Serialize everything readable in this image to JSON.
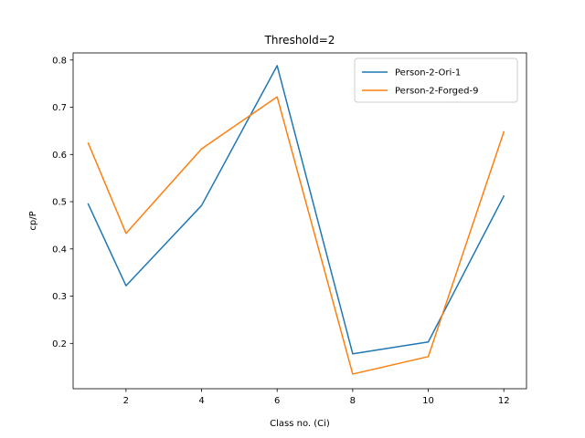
{
  "chart_data": {
    "type": "line",
    "title": "Threshold=2",
    "xlabel": "Class no. (Ci)",
    "ylabel": "cp/P",
    "x": [
      1,
      2,
      4,
      6,
      8,
      10,
      12
    ],
    "xlim": [
      0.6,
      12.6
    ],
    "ylim": [
      0.104,
      0.815
    ],
    "xticks": [
      2,
      4,
      6,
      8,
      10,
      12
    ],
    "yticks": [
      0.2,
      0.3,
      0.4,
      0.5,
      0.6,
      0.7,
      0.8
    ],
    "grid": false,
    "legend_position": "top-right",
    "series": [
      {
        "name": "Person-2-Ori-1",
        "color": "#1f77b4",
        "values": [
          0.495,
          0.322,
          0.492,
          0.788,
          0.178,
          0.203,
          0.512
        ]
      },
      {
        "name": "Person-2-Forged-9",
        "color": "#ff7f0e",
        "values": [
          0.624,
          0.433,
          0.612,
          0.722,
          0.135,
          0.172,
          0.648
        ]
      }
    ]
  }
}
